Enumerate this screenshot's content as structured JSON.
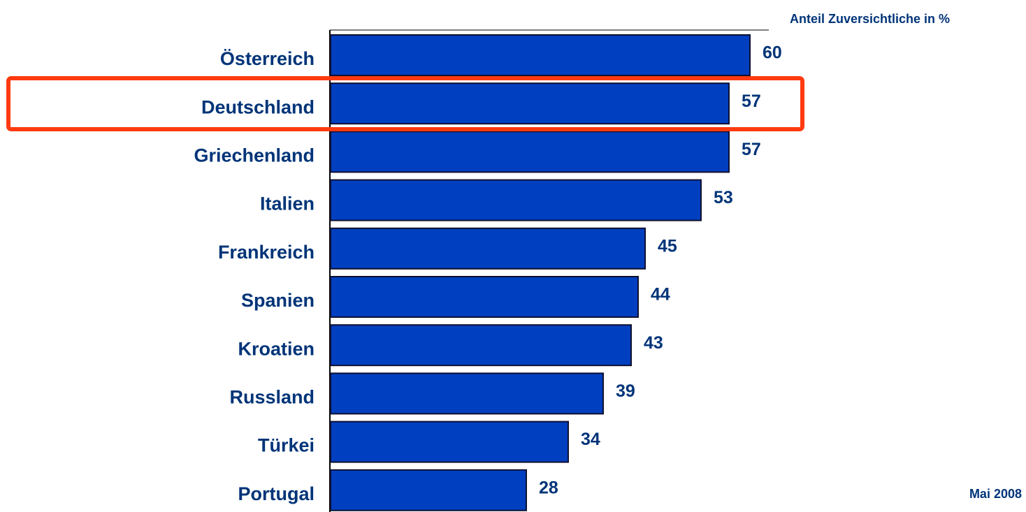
{
  "chart_data": {
    "type": "bar",
    "orientation": "horizontal",
    "title": "Anteil Zuversichtliche  in %",
    "note": "Mai 2008",
    "categories": [
      "Österreich",
      "Deutschland",
      "Griechenland",
      "Italien",
      "Frankreich",
      "Spanien",
      "Kroatien",
      "Russland",
      "Türkei",
      "Portugal"
    ],
    "values": [
      60,
      57,
      57,
      53,
      45,
      44,
      43,
      39,
      34,
      28
    ],
    "color": "#0040c0"
  }
}
